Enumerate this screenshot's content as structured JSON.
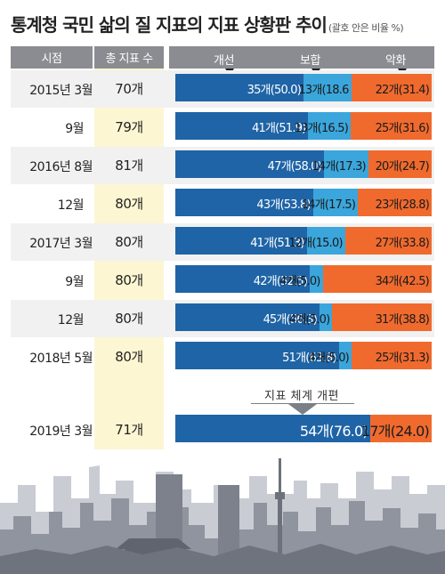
{
  "title": "통계청 국민 삶의 질 지표의 지표 상황판 추이",
  "title_note": "(괄호 안은 비율 %)",
  "headers": {
    "time": "시점",
    "total": "총 지표 수",
    "improve": "개선",
    "hold": "보합",
    "worsen": "악화"
  },
  "reorg_label": "지표 체계 개편",
  "colors": {
    "improve": "#1f64a6",
    "hold": "#3aa6dc",
    "worsen": "#f06a2e",
    "header": "#8a8c91",
    "total_col": "#fdf6d2",
    "row_band": "#f1f1f1"
  },
  "chart_data": {
    "type": "bar",
    "stacked": true,
    "orientation": "horizontal",
    "title": "통계청 국민 삶의 질 지표의 지표 상황판 추이",
    "categories": [
      "2015년 3월",
      "9월",
      "2016년 8월",
      "12월",
      "2017년 3월",
      "9월",
      "12월",
      "2018년 5월",
      "2019년 3월"
    ],
    "totals": [
      "70개",
      "79개",
      "81개",
      "80개",
      "80개",
      "80개",
      "80개",
      "80개",
      "71개"
    ],
    "series": [
      {
        "name": "개선",
        "counts": [
          35,
          41,
          47,
          43,
          41,
          42,
          45,
          51,
          54
        ],
        "percent": [
          50.0,
          51.9,
          58.0,
          53.8,
          51.3,
          52.5,
          56.3,
          63.8,
          76.0
        ],
        "labels": [
          "35개(50.0)",
          "41개(51.9)",
          "47개(58.0)",
          "43개(53.8)",
          "41개(51.3)",
          "42개(52.5)",
          "45개(56.3)",
          "51개(63.8)",
          "54개(76.0)"
        ]
      },
      {
        "name": "보합",
        "counts": [
          13,
          13,
          14,
          14,
          12,
          4,
          4,
          4,
          0
        ],
        "percent": [
          18.6,
          16.5,
          17.3,
          17.5,
          15.0,
          5.0,
          5.0,
          5.0,
          0
        ],
        "labels": [
          "13개(18.6",
          "13개(16.5)",
          "14개(17.3)",
          "14개(17.5)",
          "12개(15.0)",
          "4개(5.0)",
          "4개(5.0)",
          "4개(5.0)",
          ""
        ]
      },
      {
        "name": "악화",
        "counts": [
          22,
          25,
          20,
          23,
          27,
          34,
          31,
          25,
          17
        ],
        "percent": [
          31.4,
          31.6,
          24.7,
          28.8,
          33.8,
          42.5,
          38.8,
          31.3,
          24.0
        ],
        "labels": [
          "22개(31.4)",
          "25개(31.6)",
          "20개(24.7)",
          "23개(28.8)",
          "27개(33.8)",
          "34개(42.5)",
          "31개(38.8)",
          "25개(31.3)",
          "17개(24.0)"
        ]
      }
    ],
    "legend": "top"
  }
}
